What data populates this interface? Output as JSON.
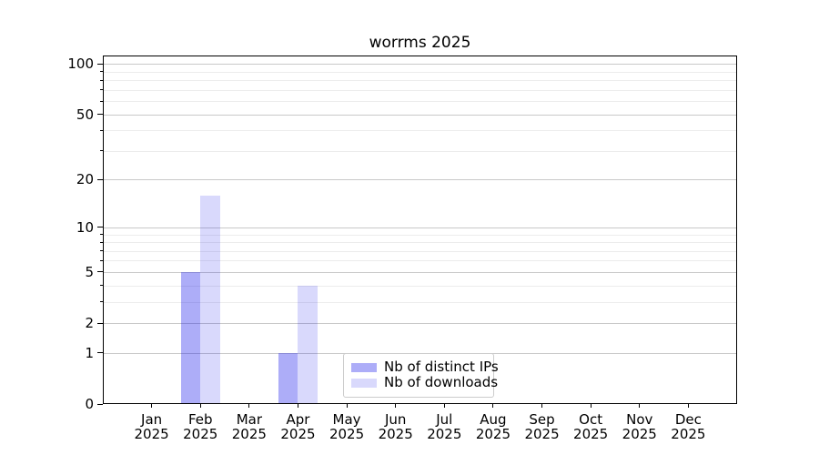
{
  "title": "worrms 2025",
  "chart_data": {
    "type": "bar",
    "title": "worrms 2025",
    "categories": [
      "Jan 2025",
      "Feb 2025",
      "Mar 2025",
      "Apr 2025",
      "May 2025",
      "Jun 2025",
      "Jul 2025",
      "Aug 2025",
      "Sep 2025",
      "Oct 2025",
      "Nov 2025",
      "Dec 2025"
    ],
    "x_month_labels": [
      "Jan",
      "Feb",
      "Mar",
      "Apr",
      "May",
      "Jun",
      "Jul",
      "Aug",
      "Sep",
      "Oct",
      "Nov",
      "Dec"
    ],
    "x_year_label": "2025",
    "series": [
      {
        "name": "Nb of distinct IPs",
        "color": "rgba(20,20,235,0.35)",
        "values": [
          0,
          5,
          0,
          1,
          0,
          0,
          0,
          0,
          0,
          0,
          0,
          0
        ]
      },
      {
        "name": "Nb of downloads",
        "color": "rgba(20,20,235,0.16)",
        "values": [
          0,
          16,
          0,
          4,
          0,
          0,
          0,
          0,
          0,
          0,
          0,
          0
        ]
      }
    ],
    "yscale": "log1p",
    "ylim": [
      0,
      112
    ],
    "y_major_ticks": [
      0,
      1,
      2,
      5,
      10,
      20,
      50,
      100
    ],
    "y_minor_ticks": [
      3,
      4,
      6,
      7,
      8,
      9,
      30,
      40,
      60,
      70,
      80,
      90
    ],
    "grid": "both",
    "legend_position": "lower center"
  },
  "legend": {
    "items": [
      {
        "label": "Nb of distinct IPs",
        "color": "rgba(20,20,235,0.35)"
      },
      {
        "label": "Nb of downloads",
        "color": "rgba(20,20,235,0.16)"
      }
    ]
  },
  "colors": {
    "background": "#ffffff",
    "spine": "#000000",
    "grid_major": "#c9c9c9",
    "grid_minor": "#ececec",
    "text": "#000000",
    "legend_border": "#cccccc",
    "bar_ips_rendered": "#adadf8",
    "bar_downloads_rendered": "#d9d9fc"
  }
}
